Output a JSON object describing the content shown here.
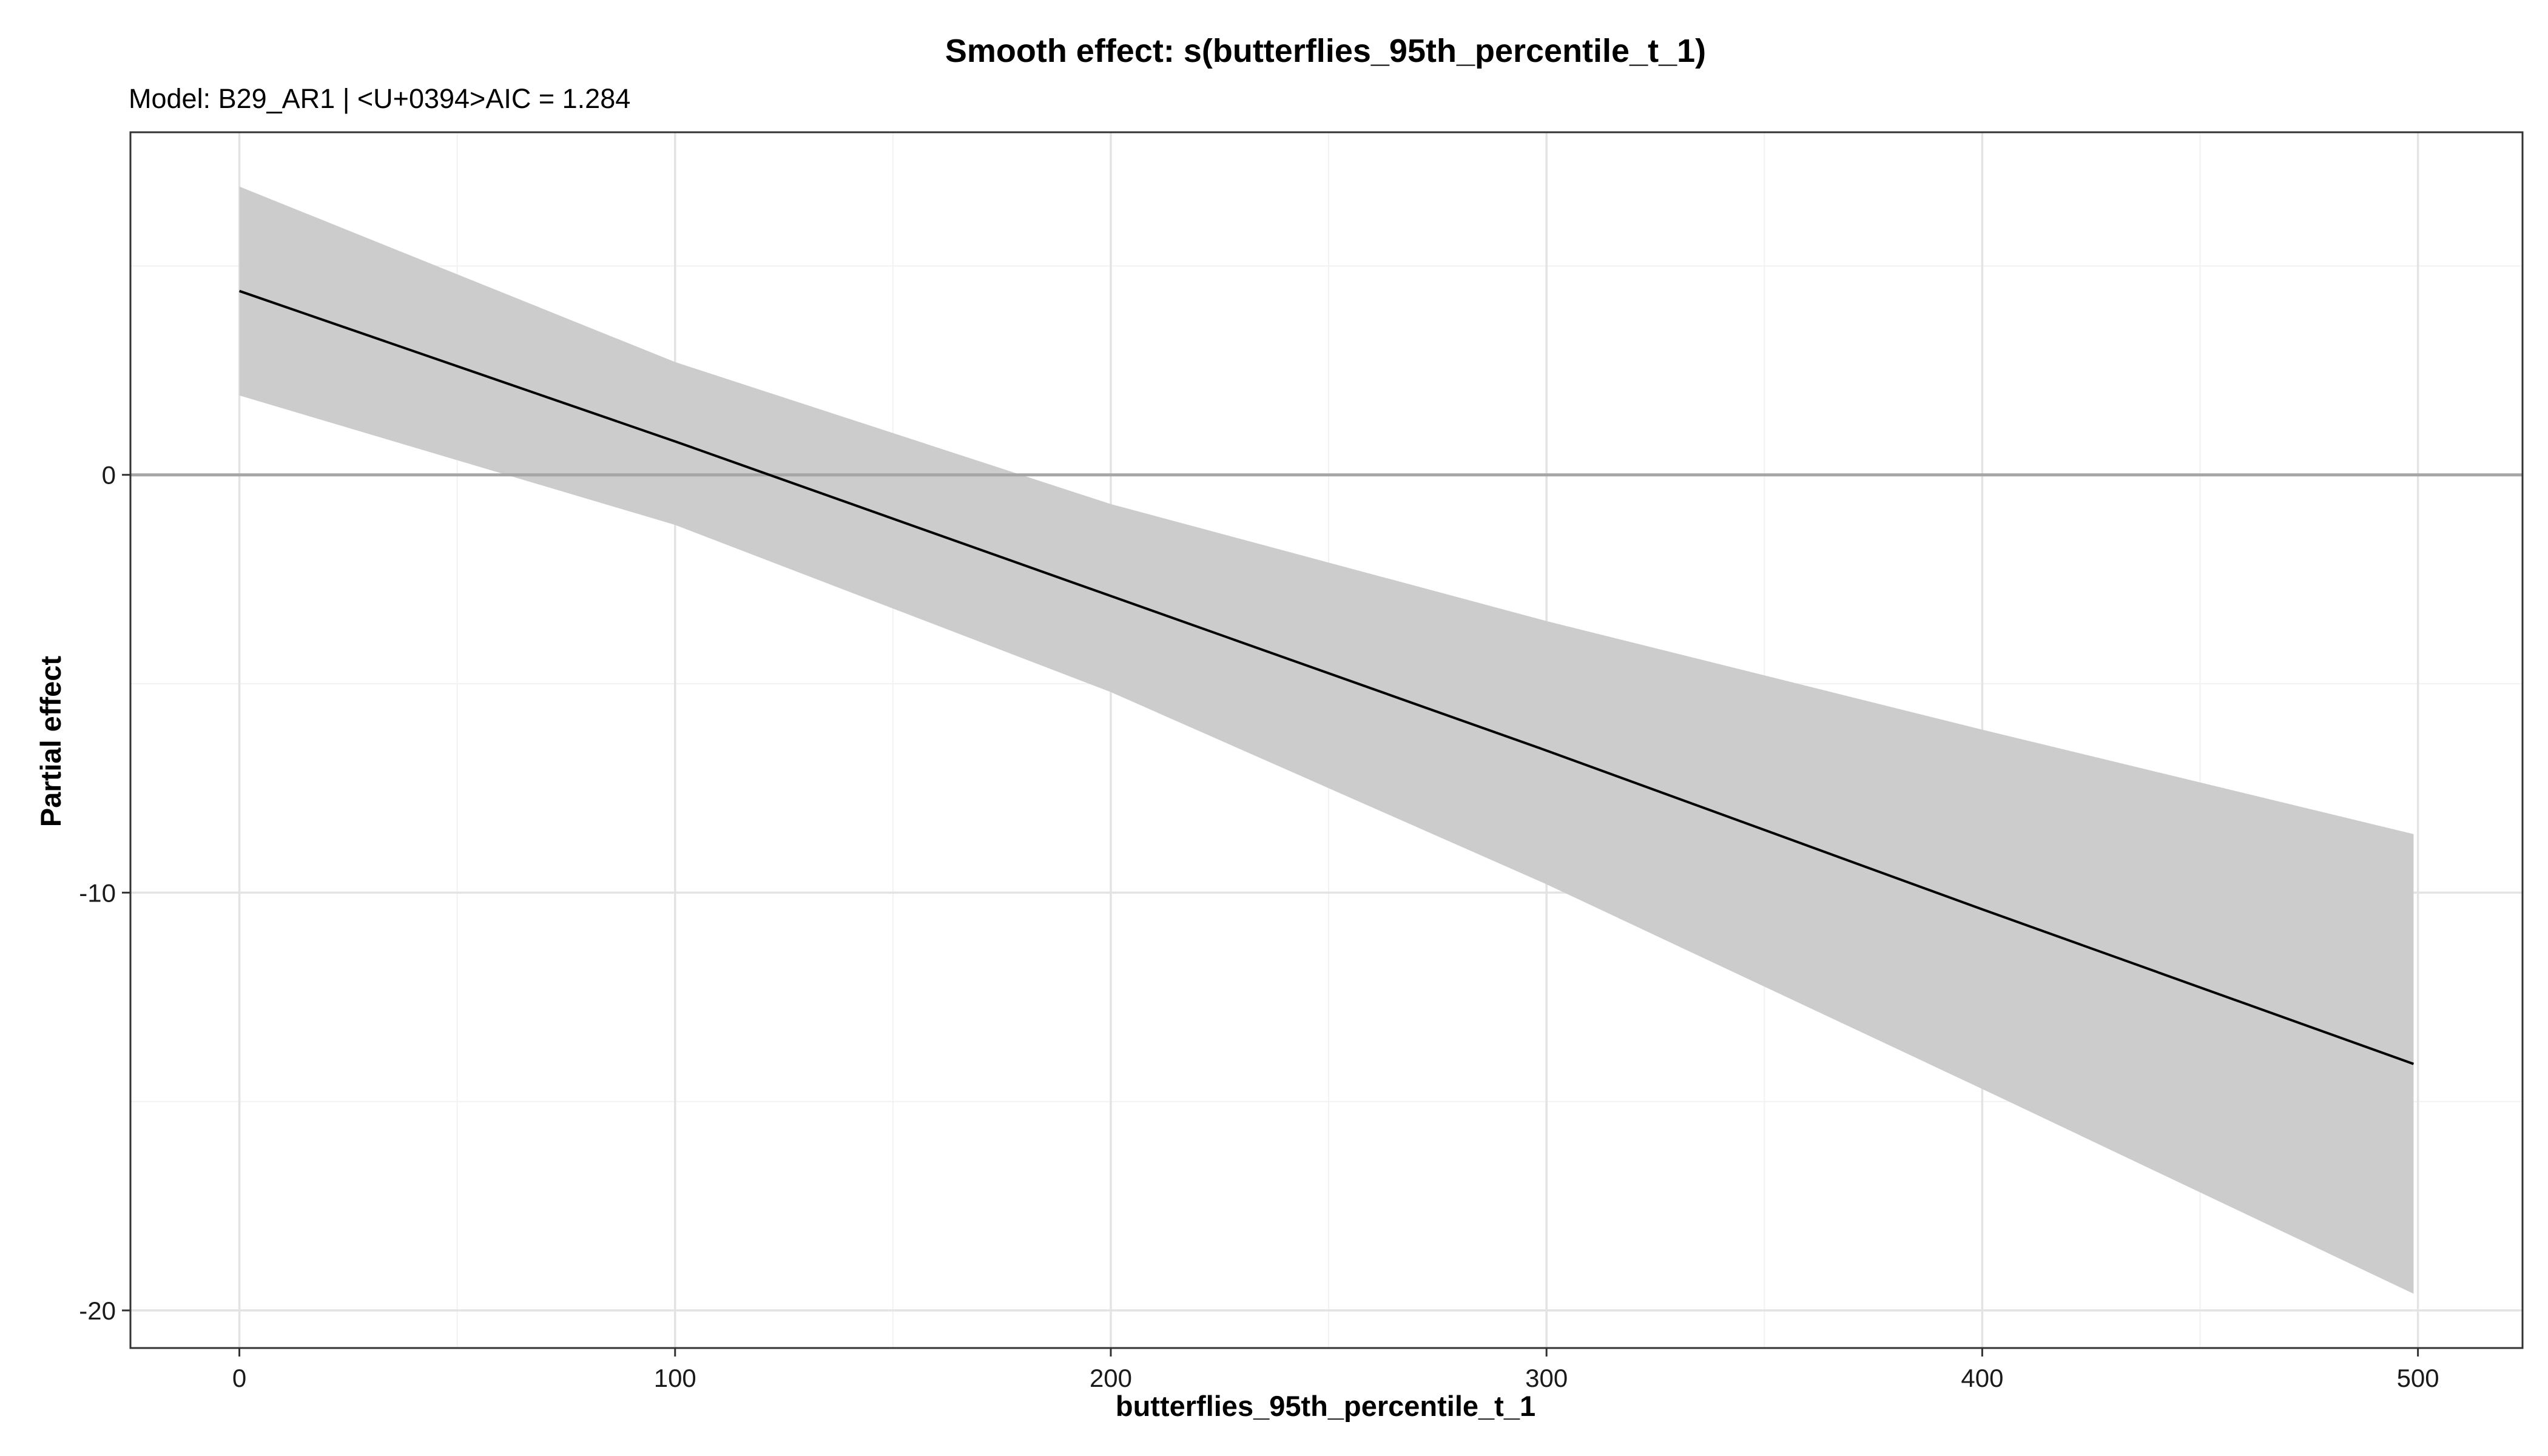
{
  "chart_data": {
    "type": "line",
    "title": "Smooth effect: s(butterflies_95th_percentile_t_1)",
    "subtitle": "Model: B29_AR1 | <U+0394>AIC = 1.284",
    "xlabel": "butterflies_95th_percentile_t_1",
    "ylabel": "Partial effect",
    "xlim": [
      -25,
      524
    ],
    "ylim": [
      -20.9,
      8.2
    ],
    "x_ticks": [
      0,
      100,
      200,
      300,
      400,
      500
    ],
    "x_tick_labels": [
      "0",
      "100",
      "200",
      "300",
      "400",
      "500"
    ],
    "y_ticks": [
      0,
      -10,
      -20
    ],
    "y_tick_labels": [
      "0",
      "-10",
      "-20"
    ],
    "grid": true,
    "reference_line": 0,
    "series": [
      {
        "x": [
          0,
          100,
          200,
          300,
          400,
          499
        ],
        "y": [
          4.4,
          0.8,
          -2.9,
          -6.6,
          -10.4,
          -14.1
        ],
        "lower": [
          1.9,
          -1.2,
          -5.2,
          -9.8,
          -14.7,
          -19.6
        ],
        "upper": [
          6.9,
          2.7,
          -0.7,
          -3.5,
          -6.1,
          -8.6
        ]
      }
    ],
    "colors": {
      "line": "#000000",
      "ribbon": "#cccccc",
      "reference_line": "#a6a6a6",
      "grid_major": "#e3e3e3",
      "grid_minor": "#f2f2f2",
      "panel_border": "#333333"
    }
  }
}
